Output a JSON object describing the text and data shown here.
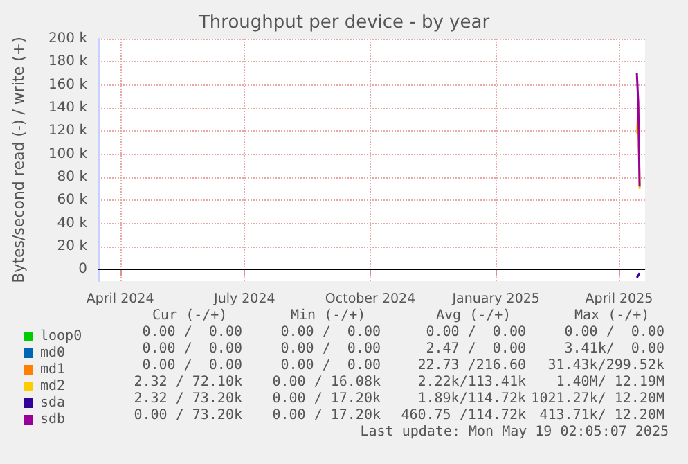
{
  "chart_data": {
    "type": "line",
    "title": "Throughput per device - by year",
    "ylabel": "Bytes/second read (-) / write (+)",
    "xlim": [
      "2024-03-16",
      "2025-04-20"
    ],
    "xticks": [
      {
        "value": "2024-04-01",
        "label": "April 2024"
      },
      {
        "value": "2024-07-01",
        "label": "July 2024"
      },
      {
        "value": "2024-10-01",
        "label": "October 2024"
      },
      {
        "value": "2025-01-01",
        "label": "January 2025"
      },
      {
        "value": "2025-04-01",
        "label": "April 2025"
      }
    ],
    "ylim": [
      -10000,
      200000
    ],
    "yticks": [
      {
        "value": 0,
        "label": "0"
      },
      {
        "value": 20000,
        "label": "20 k"
      },
      {
        "value": 40000,
        "label": "40 k"
      },
      {
        "value": 60000,
        "label": "60 k"
      },
      {
        "value": 80000,
        "label": "80 k"
      },
      {
        "value": 100000,
        "label": "100 k"
      },
      {
        "value": 120000,
        "label": "120 k"
      },
      {
        "value": 140000,
        "label": "140 k"
      },
      {
        "value": 160000,
        "label": "160 k"
      },
      {
        "value": 180000,
        "label": "180 k"
      },
      {
        "value": 200000,
        "label": "200 k"
      }
    ],
    "grid": true,
    "legend": "bottom left",
    "marker": "none",
    "line_style": "solid",
    "series": [
      {
        "name": "loop0",
        "color": "#00cc00"
      },
      {
        "name": "md0",
        "color": "#0066b3"
      },
      {
        "name": "md1",
        "color": "#ff8000"
      },
      {
        "name": "md2",
        "color": "#ffcc00",
        "x": [
          "2025-04-14",
          "2025-04-15",
          "2025-04-16"
        ],
        "values": [
          118000,
          140000,
          70000
        ]
      },
      {
        "name": "sda",
        "color": "#330099"
      },
      {
        "name": "sdb",
        "color": "#990099",
        "x": [
          "2025-04-14",
          "2025-04-15",
          "2025-04-16"
        ],
        "values": [
          170000,
          145000,
          72000
        ]
      },
      {
        "color": "#330099",
        "x": [
          "2025-04-14",
          "2025-04-15",
          "2025-04-16"
        ],
        "values": [
          -7000,
          -5000,
          -3000
        ]
      }
    ],
    "ref_lines": [
      {
        "axis": "y",
        "value": 0,
        "color": "#000000"
      }
    ],
    "annotations": [
      "Cur (-/+)",
      "Min (-/+)",
      "Avg (-/+)",
      "Max (-/+)",
      "0.00 /  0.00",
      "0.00 /  0.00",
      "0.00 /  0.00",
      "0.00 /  0.00",
      "0.00 /  0.00",
      "0.00 /  0.00",
      "2.47 /  0.00",
      "3.41k/  0.00",
      "0.00 /  0.00",
      "0.00 /  0.00",
      "22.73 /216.60",
      "31.43k/299.52k",
      "2.32 / 72.10k",
      "0.00 / 16.08k",
      "2.22k/113.41k",
      "1.40M/ 12.19M",
      "2.32 / 73.20k",
      "0.00 / 17.20k",
      "1.89k/114.72k",
      "1021.27k/ 12.20M",
      "0.00 / 73.20k",
      "0.00 / 17.20k",
      "460.75 /114.72k",
      "413.71k/ 12.20M",
      "Last update: Mon May 19 02:05:07 2025"
    ]
  }
}
